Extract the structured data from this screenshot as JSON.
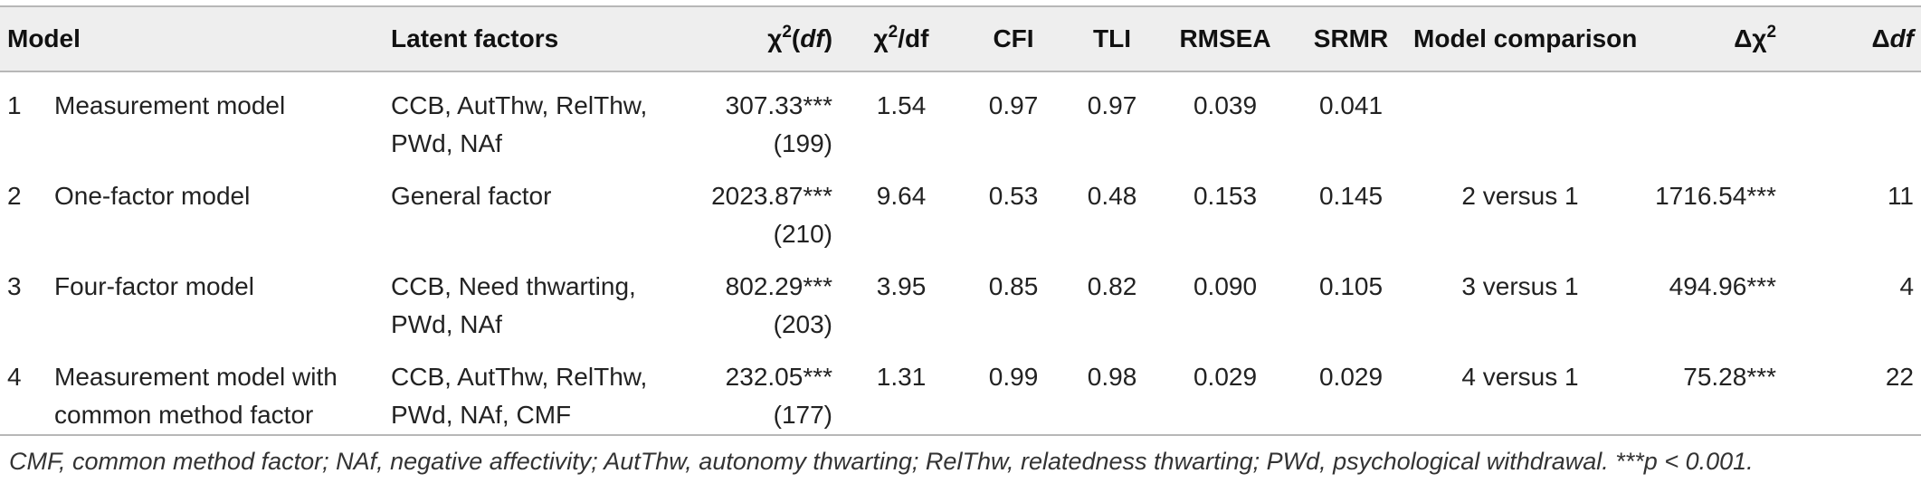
{
  "headers": {
    "model": "Model",
    "latent": "Latent factors",
    "chi_df_base": "χ",
    "chi_df_sup": "2",
    "chi_df_open": "(",
    "chi_df_it": "df",
    "chi_df_close": ")",
    "chi_ratio_base": "χ",
    "chi_ratio_sup": "2",
    "chi_ratio_rest": "/df",
    "cfi": "CFI",
    "tli": "TLI",
    "rmsea": "RMSEA",
    "srmr": "SRMR",
    "comparison": "Model comparison",
    "delta_chi_base": "Δχ",
    "delta_chi_sup": "2",
    "delta_df_base": "Δ",
    "delta_df_it": "df"
  },
  "rows": [
    {
      "num": "1",
      "model": [
        "Measurement model"
      ],
      "latent": [
        "CCB, AutThw, RelThw,",
        "PWd, NAf"
      ],
      "chi": "307.33***",
      "df": "(199)",
      "ratio": "1.54",
      "cfi": "0.97",
      "tli": "0.97",
      "rmsea": "0.039",
      "srmr": "0.041",
      "comparison": "",
      "delta_chi": "",
      "delta_df": ""
    },
    {
      "num": "2",
      "model": [
        "One-factor model"
      ],
      "latent": [
        "General factor"
      ],
      "chi": "2023.87***",
      "df": "(210)",
      "ratio": "9.64",
      "cfi": "0.53",
      "tli": "0.48",
      "rmsea": "0.153",
      "srmr": "0.145",
      "comparison": "2 versus 1",
      "delta_chi": "1716.54***",
      "delta_df": "11"
    },
    {
      "num": "3",
      "model": [
        "Four-factor model"
      ],
      "latent": [
        "CCB, Need thwarting,",
        "PWd, NAf"
      ],
      "chi": "802.29***",
      "df": "(203)",
      "ratio": "3.95",
      "cfi": "0.85",
      "tli": "0.82",
      "rmsea": "0.090",
      "srmr": "0.105",
      "comparison": "3 versus 1",
      "delta_chi": "494.96***",
      "delta_df": "4"
    },
    {
      "num": "4",
      "model": [
        "Measurement model with",
        "common method factor"
      ],
      "latent": [
        "CCB, AutThw, RelThw,",
        "PWd, NAf, CMF"
      ],
      "chi": "232.05***",
      "df": "(177)",
      "ratio": "1.31",
      "cfi": "0.99",
      "tli": "0.98",
      "rmsea": "0.029",
      "srmr": "0.029",
      "comparison": "4 versus 1",
      "delta_chi": "75.28***",
      "delta_df": "22"
    }
  ],
  "note": "CMF, common method factor; NAf, negative affectivity; AutThw, autonomy thwarting; RelThw, relatedness thwarting; PWd, psychological withdrawal. ***p < 0.001."
}
